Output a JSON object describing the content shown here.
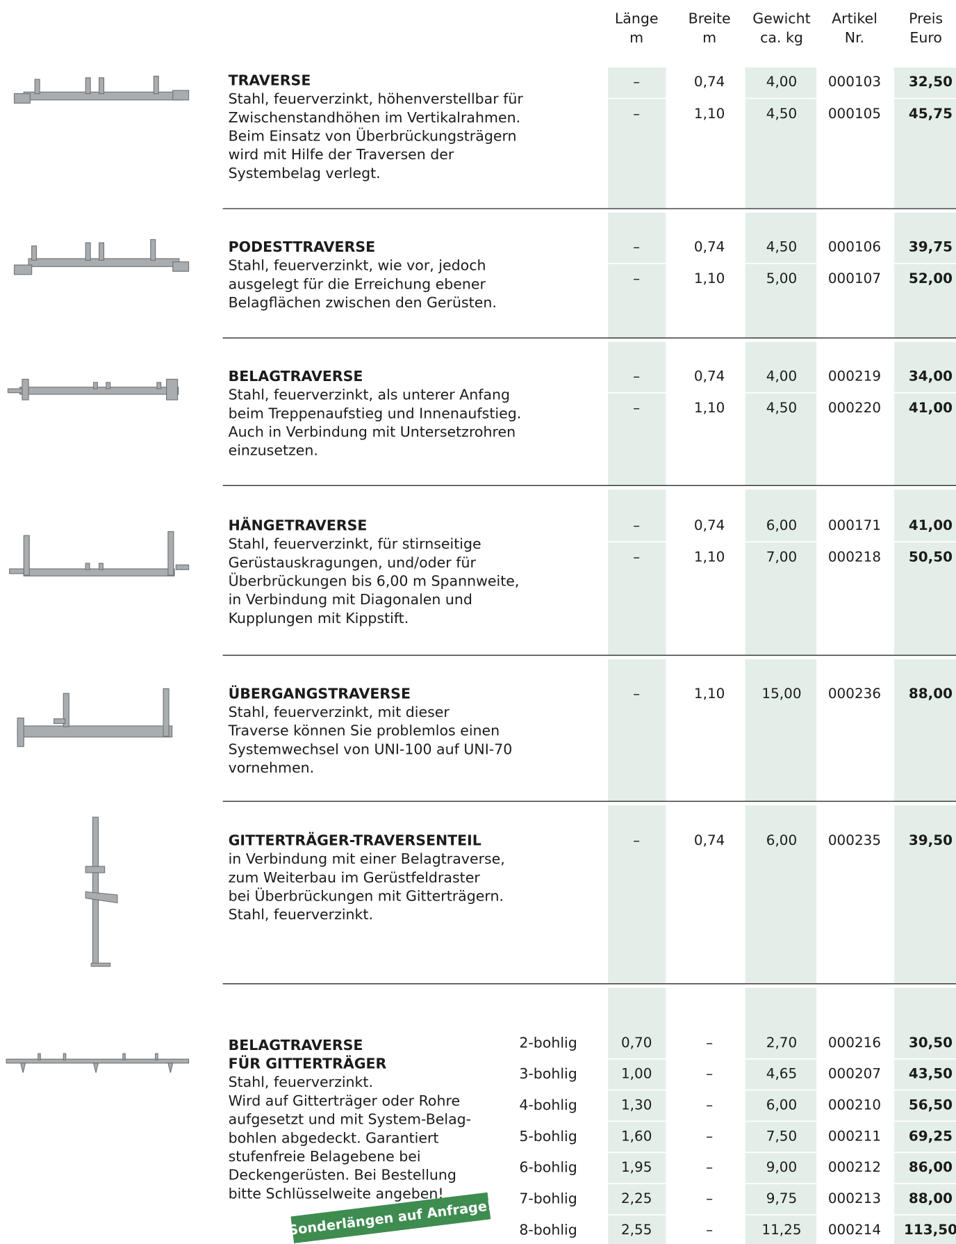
{
  "header": {
    "columns": [
      {
        "line1": "Länge",
        "line2": "m"
      },
      {
        "line1": "Breite",
        "line2": "m"
      },
      {
        "line1": "Gewicht",
        "line2": "ca. kg"
      },
      {
        "line1": "Artikel",
        "line2": "Nr."
      },
      {
        "line1": "Preis",
        "line2": "Euro"
      }
    ]
  },
  "sections": [
    {
      "title": [
        "TRAVERSE"
      ],
      "description": [
        "Stahl, feuerverzinkt, höhenverstellbar für",
        "Zwischenstandhöhen im Vertikalrahmen.",
        "Beim Einsatz von Überbrückungsträgern",
        "wird mit Hilfe der Traversen der",
        "Systembelag verlegt."
      ],
      "rows": [
        [
          "–",
          "0,74",
          "4,00",
          "000103",
          "32,50"
        ],
        [
          "–",
          "1,10",
          "4,50",
          "000105",
          "45,75"
        ]
      ]
    },
    {
      "title": [
        "PODESTTRAVERSE"
      ],
      "description": [
        "Stahl, feuerverzinkt, wie vor, jedoch",
        "ausgelegt für die Erreichung ebener",
        "Belagflächen zwischen den Gerüsten."
      ],
      "rows": [
        [
          "–",
          "0,74",
          "4,50",
          "000106",
          "39,75"
        ],
        [
          "–",
          "1,10",
          "5,00",
          "000107",
          "52,00"
        ]
      ]
    },
    {
      "title": [
        "BELAGTRAVERSE"
      ],
      "description": [
        "Stahl, feuerverzinkt, als unterer Anfang",
        "beim Treppenaufstieg und Innenaufstieg.",
        "Auch in Verbindung mit Untersetzrohren",
        "einzusetzen."
      ],
      "rows": [
        [
          "–",
          "0,74",
          "4,00",
          "000219",
          "34,00"
        ],
        [
          "–",
          "1,10",
          "4,50",
          "000220",
          "41,00"
        ]
      ]
    },
    {
      "title": [
        "HÄNGETRAVERSE"
      ],
      "description": [
        "Stahl, feuerverzinkt, für stirnseitige",
        "Gerüstauskragungen, und/oder für",
        "Überbrückungen bis 6,00 m Spannweite,",
        "in Verbindung mit Diagonalen und",
        "Kupplungen mit Kippstift."
      ],
      "rows": [
        [
          "–",
          "0,74",
          "6,00",
          "000171",
          "41,00"
        ],
        [
          "–",
          "1,10",
          "7,00",
          "000218",
          "50,50"
        ]
      ]
    },
    {
      "title": [
        "ÜBERGANGSTRAVERSE"
      ],
      "description": [
        "Stahl, feuerverzinkt, mit dieser",
        "Traverse können Sie problemlos einen",
        "Systemwechsel von UNI-100 auf UNI-70",
        "vornehmen."
      ],
      "rows": [
        [
          "–",
          "1,10",
          "15,00",
          "000236",
          "88,00"
        ]
      ]
    },
    {
      "title": [
        "GITTERTRÄGER-TRAVERSENTEIL"
      ],
      "description": [
        "in Verbindung mit einer Belagtraverse,",
        "zum Weiterbau im Gerüstfeldraster",
        "bei Überbrückungen mit Gitterträgern.",
        "Stahl, feuerverzinkt."
      ],
      "rows": [
        [
          "–",
          "0,74",
          "6,00",
          "000235",
          "39,50"
        ]
      ]
    },
    {
      "title": [
        "BELAGTRAVERSE",
        "FÜR GITTERTRÄGER"
      ],
      "description": [
        "Stahl, feuerverzinkt.",
        "Wird auf Gitterträger oder Rohre",
        "aufgesetzt und mit System-Belag-",
        "bohlen abgedeckt. Garantiert",
        "stufenfreie Belagebene bei",
        "Deckengerüsten. Bei Bestellung",
        "bitte Schlüsselweite angeben!"
      ],
      "variants": [
        "2-bohlig",
        "3-bohlig",
        "4-bohlig",
        "5-bohlig",
        "6-bohlig",
        "7-bohlig",
        "8-bohlig"
      ],
      "rows": [
        [
          "0,70",
          "–",
          "2,70",
          "000216",
          "30,50"
        ],
        [
          "1,00",
          "–",
          "4,65",
          "000207",
          "43,50"
        ],
        [
          "1,30",
          "–",
          "6,00",
          "000210",
          "56,50"
        ],
        [
          "1,60",
          "–",
          "7,50",
          "000211",
          "69,25"
        ],
        [
          "1,95",
          "–",
          "9,00",
          "000212",
          "86,00"
        ],
        [
          "2,25",
          "–",
          "9,75",
          "000213",
          "88,00"
        ],
        [
          "2,55",
          "–",
          "11,25",
          "000214",
          "113,50"
        ]
      ],
      "badge": "Sonderlängen auf Anfrage!"
    }
  ]
}
